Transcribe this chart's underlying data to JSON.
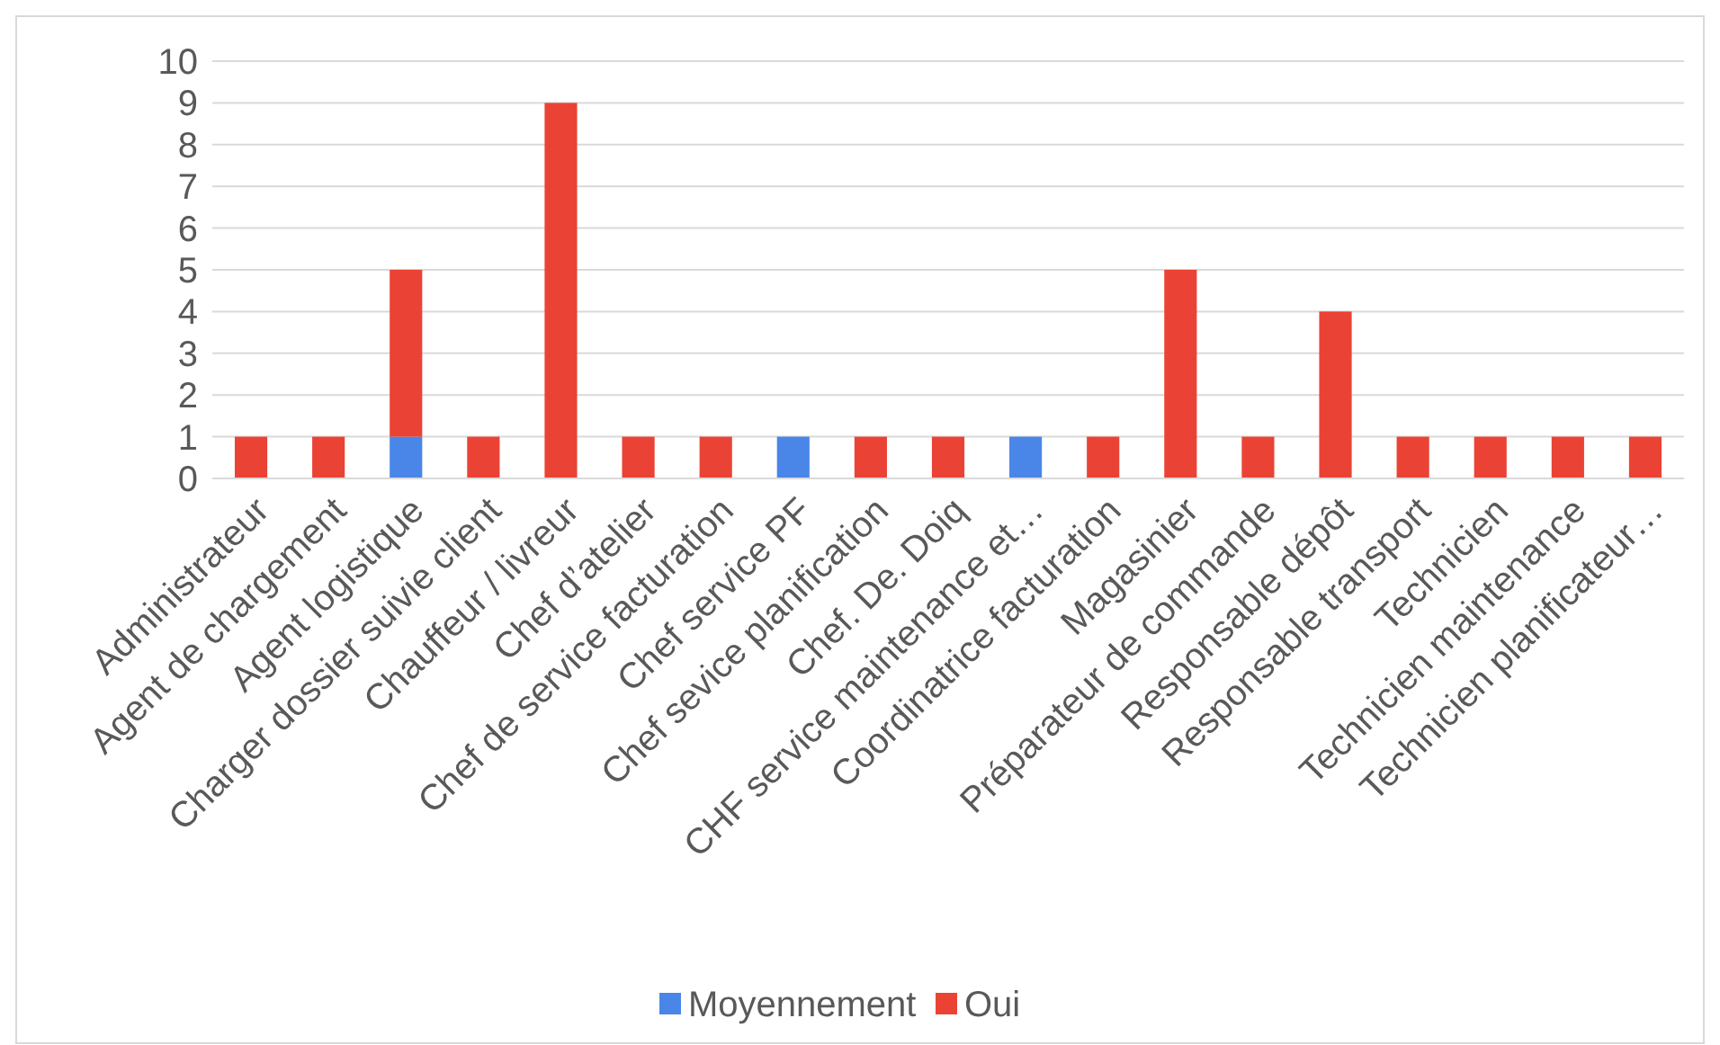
{
  "chart_data": {
    "type": "bar",
    "stacked": true,
    "categories": [
      "Administrateur",
      "Agent de chargement",
      "Agent logistique",
      "Charger dossier suivie client",
      "Chauffeur / livreur",
      "Chef d’atelier",
      "Chef de service facturation",
      "Chef service PF",
      "Chef sevice planification",
      "Chef. De. Doiq",
      "CHF service maintenance et…",
      "Coordinatrice facturation",
      "Magasinier",
      "Préparateur de commande",
      "Responsable dépôt",
      "Responsable transport",
      "Technicien",
      "Technicien maintenance",
      "Technicien planificateur…"
    ],
    "series": [
      {
        "name": "Moyennement",
        "color": "#4a86e8",
        "values": [
          0,
          0,
          1,
          0,
          0,
          0,
          0,
          1,
          0,
          0,
          1,
          0,
          0,
          0,
          0,
          0,
          0,
          0,
          0
        ]
      },
      {
        "name": "Oui",
        "color": "#ea4335",
        "values": [
          1,
          1,
          4,
          1,
          9,
          1,
          1,
          0,
          1,
          1,
          0,
          1,
          5,
          1,
          4,
          1,
          1,
          1,
          1
        ]
      }
    ],
    "ylim": [
      0,
      10
    ],
    "yticks": [
      0,
      1,
      2,
      3,
      4,
      5,
      6,
      7,
      8,
      9,
      10
    ],
    "grid": "y",
    "legend": "bottom"
  }
}
